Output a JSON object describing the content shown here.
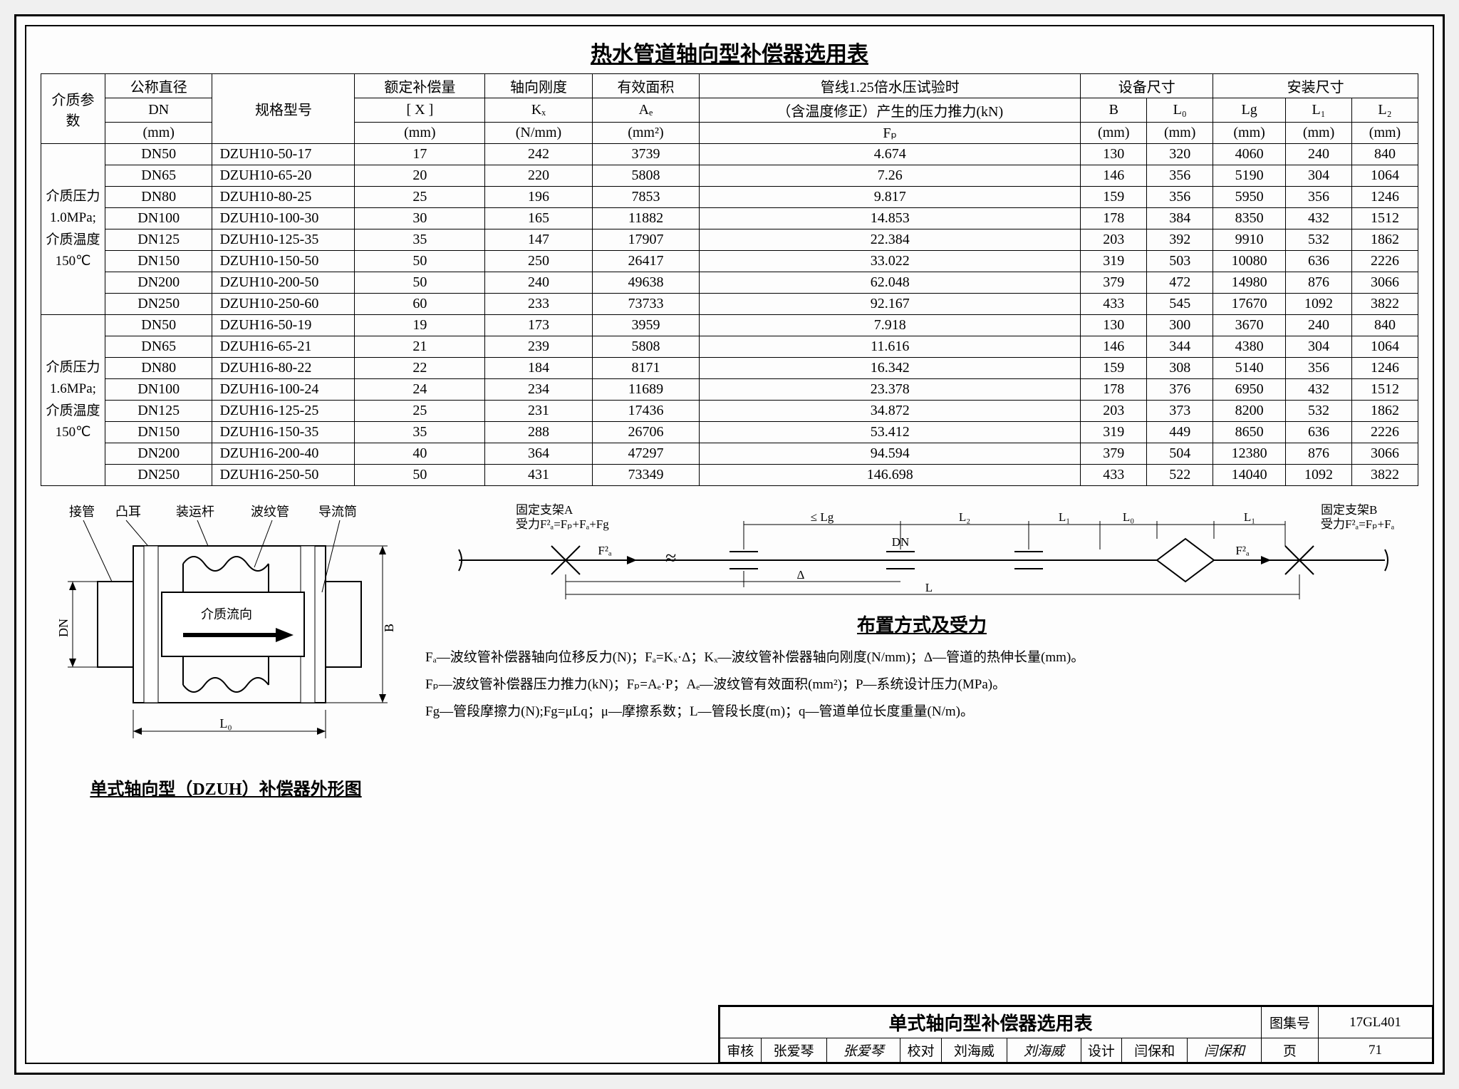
{
  "title": "热水管道轴向型补偿器选用表",
  "headers": {
    "param": "介质参数",
    "dn": "公称直径",
    "dn_sym": "DN",
    "dn_unit": "(mm)",
    "model": "规格型号",
    "comp": "额定补偿量",
    "comp_sym": "[ X ]",
    "comp_unit": "(mm)",
    "stiff": "轴向刚度",
    "stiff_sym": "Kₓ",
    "stiff_unit": "(N/mm)",
    "area": "有效面积",
    "area_sym": "Aₑ",
    "area_unit": "(mm²)",
    "force": "管线1.25倍水压试验时",
    "force2": "（含温度修正）产生的压力推力(kN)",
    "force_sym": "Fₚ",
    "equip": "设备尺寸",
    "install": "安装尺寸",
    "B": "B",
    "B_unit": "(mm)",
    "L0": "L₀",
    "L0_unit": "(mm)",
    "Lg": "Lg",
    "Lg_unit": "(mm)",
    "L1": "L₁",
    "L1_unit": "(mm)",
    "L2": "L₂",
    "L2_unit": "(mm)"
  },
  "groups": [
    {
      "label": "介质压力\n1.0MPa;\n介质温度\n150℃",
      "rows": [
        {
          "dn": "DN50",
          "model": "DZUH10-50-17",
          "x": "17",
          "kx": "242",
          "ae": "3739",
          "fp": "4.674",
          "b": "130",
          "l0": "320",
          "lg": "4060",
          "l1": "240",
          "l2": "840"
        },
        {
          "dn": "DN65",
          "model": "DZUH10-65-20",
          "x": "20",
          "kx": "220",
          "ae": "5808",
          "fp": "7.26",
          "b": "146",
          "l0": "356",
          "lg": "5190",
          "l1": "304",
          "l2": "1064"
        },
        {
          "dn": "DN80",
          "model": "DZUH10-80-25",
          "x": "25",
          "kx": "196",
          "ae": "7853",
          "fp": "9.817",
          "b": "159",
          "l0": "356",
          "lg": "5950",
          "l1": "356",
          "l2": "1246"
        },
        {
          "dn": "DN100",
          "model": "DZUH10-100-30",
          "x": "30",
          "kx": "165",
          "ae": "11882",
          "fp": "14.853",
          "b": "178",
          "l0": "384",
          "lg": "8350",
          "l1": "432",
          "l2": "1512"
        },
        {
          "dn": "DN125",
          "model": "DZUH10-125-35",
          "x": "35",
          "kx": "147",
          "ae": "17907",
          "fp": "22.384",
          "b": "203",
          "l0": "392",
          "lg": "9910",
          "l1": "532",
          "l2": "1862"
        },
        {
          "dn": "DN150",
          "model": "DZUH10-150-50",
          "x": "50",
          "kx": "250",
          "ae": "26417",
          "fp": "33.022",
          "b": "319",
          "l0": "503",
          "lg": "10080",
          "l1": "636",
          "l2": "2226"
        },
        {
          "dn": "DN200",
          "model": "DZUH10-200-50",
          "x": "50",
          "kx": "240",
          "ae": "49638",
          "fp": "62.048",
          "b": "379",
          "l0": "472",
          "lg": "14980",
          "l1": "876",
          "l2": "3066"
        },
        {
          "dn": "DN250",
          "model": "DZUH10-250-60",
          "x": "60",
          "kx": "233",
          "ae": "73733",
          "fp": "92.167",
          "b": "433",
          "l0": "545",
          "lg": "17670",
          "l1": "1092",
          "l2": "3822"
        }
      ]
    },
    {
      "label": "介质压力\n1.6MPa;\n介质温度\n150℃",
      "rows": [
        {
          "dn": "DN50",
          "model": "DZUH16-50-19",
          "x": "19",
          "kx": "173",
          "ae": "3959",
          "fp": "7.918",
          "b": "130",
          "l0": "300",
          "lg": "3670",
          "l1": "240",
          "l2": "840"
        },
        {
          "dn": "DN65",
          "model": "DZUH16-65-21",
          "x": "21",
          "kx": "239",
          "ae": "5808",
          "fp": "11.616",
          "b": "146",
          "l0": "344",
          "lg": "4380",
          "l1": "304",
          "l2": "1064"
        },
        {
          "dn": "DN80",
          "model": "DZUH16-80-22",
          "x": "22",
          "kx": "184",
          "ae": "8171",
          "fp": "16.342",
          "b": "159",
          "l0": "308",
          "lg": "5140",
          "l1": "356",
          "l2": "1246"
        },
        {
          "dn": "DN100",
          "model": "DZUH16-100-24",
          "x": "24",
          "kx": "234",
          "ae": "11689",
          "fp": "23.378",
          "b": "178",
          "l0": "376",
          "lg": "6950",
          "l1": "432",
          "l2": "1512"
        },
        {
          "dn": "DN125",
          "model": "DZUH16-125-25",
          "x": "25",
          "kx": "231",
          "ae": "17436",
          "fp": "34.872",
          "b": "203",
          "l0": "373",
          "lg": "8200",
          "l1": "532",
          "l2": "1862"
        },
        {
          "dn": "DN150",
          "model": "DZUH16-150-35",
          "x": "35",
          "kx": "288",
          "ae": "26706",
          "fp": "53.412",
          "b": "319",
          "l0": "449",
          "lg": "8650",
          "l1": "636",
          "l2": "2226"
        },
        {
          "dn": "DN200",
          "model": "DZUH16-200-40",
          "x": "40",
          "kx": "364",
          "ae": "47297",
          "fp": "94.594",
          "b": "379",
          "l0": "504",
          "lg": "12380",
          "l1": "876",
          "l2": "3066"
        },
        {
          "dn": "DN250",
          "model": "DZUH16-250-50",
          "x": "50",
          "kx": "431",
          "ae": "73349",
          "fp": "146.698",
          "b": "433",
          "l0": "522",
          "lg": "14040",
          "l1": "1092",
          "l2": "3822"
        }
      ]
    }
  ],
  "diagram_labels": {
    "jieguan": "接管",
    "tuer": "凸耳",
    "zhuangyungan": "装运杆",
    "bowenguan": "波纹管",
    "daolutong": "导流筒",
    "flow": "介质流向",
    "DN": "DN",
    "B": "B",
    "L0": "L₀",
    "caption": "单式轴向型（DZUH）补偿器外形图"
  },
  "layout_diagram": {
    "fixA": "固定支架A",
    "fixB": "固定支架B",
    "forceA": "受力F²ₐ=Fₚ+Fₐ+Fg",
    "forceB": "受力F²ₐ=Fₚ+Fₐ",
    "Lg": "≤ Lg",
    "L2": "L₂",
    "L1": "L₁",
    "L0": "L₀",
    "DN": "DN",
    "delta": "Δ",
    "L": "L",
    "Fa2": "F²ₐ",
    "title": "布置方式及受力"
  },
  "formulas": {
    "l1": "Fₐ—波纹管补偿器轴向位移反力(N)；Fₐ=Kₓ·Δ；Kₓ—波纹管补偿器轴向刚度(N/mm)；Δ—管道的热伸长量(mm)。",
    "l2": "Fₚ—波纹管补偿器压力推力(kN)；Fₚ=Aₑ·P；Aₑ—波纹管有效面积(mm²)；P—系统设计压力(MPa)。",
    "l3": "Fg—管段摩擦力(N);Fg=μLq；μ—摩擦系数；L—管段长度(m)；q—管道单位长度重量(N/m)。"
  },
  "titleblock": {
    "main": "单式轴向型补偿器选用表",
    "drawno_label": "图集号",
    "drawno": "17GL401",
    "review": "审核",
    "reviewer": "张爱琴",
    "reviewer_sig": "张爱琴",
    "check": "校对",
    "checker": "刘海威",
    "checker_sig": "刘海威",
    "design": "设计",
    "designer": "闫保和",
    "designer_sig": "闫保和",
    "page_label": "页",
    "page": "71"
  }
}
